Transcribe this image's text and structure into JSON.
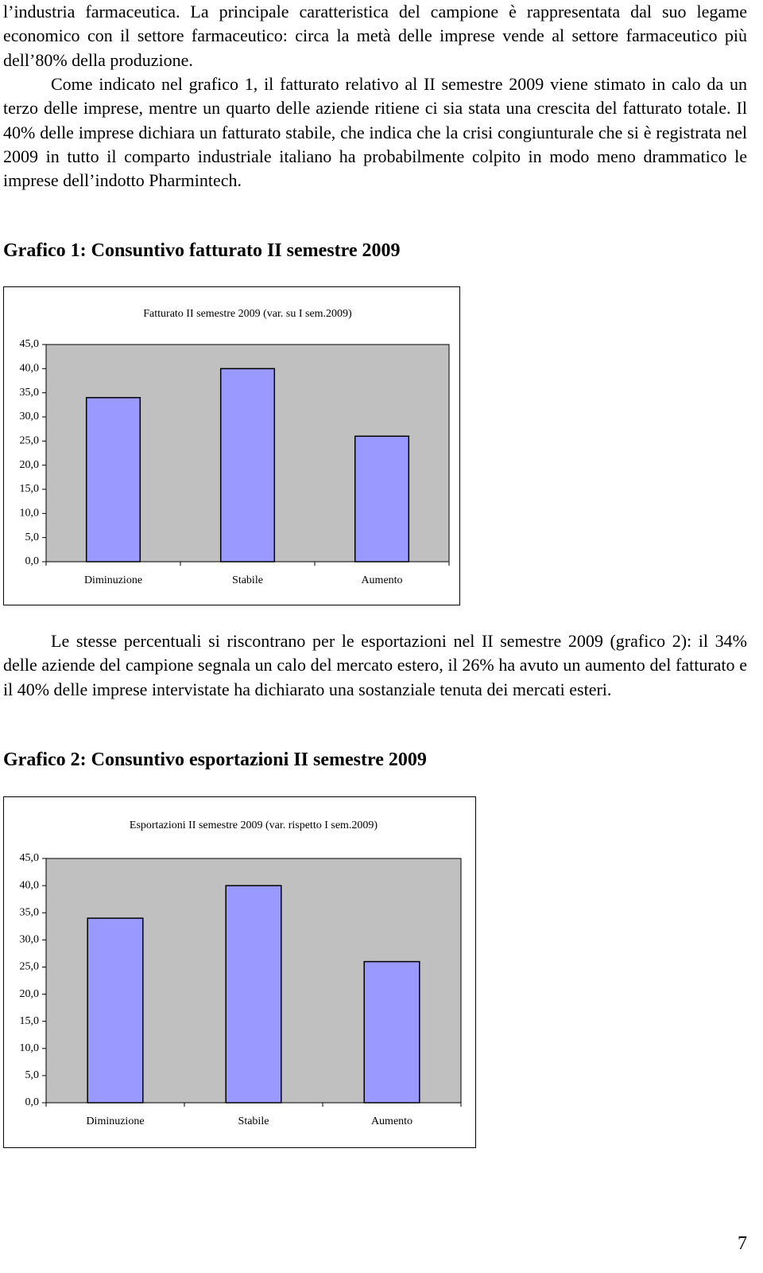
{
  "paragraphs": [
    "l’industria farmaceutica. La principale caratteristica del campione è rappresentata dal suo legame economico con il settore farmaceutico: circa la metà delle imprese vende al settore farmaceutico più dell’80% della produzione.",
    "Come indicato nel grafico 1, il fatturato relativo al II semestre 2009 viene stimato in calo da un terzo delle imprese, mentre un quarto delle aziende ritiene ci sia stata una crescita del fatturato totale. Il 40% delle imprese dichiara un fatturato stabile, che indica che la crisi congiunturale che si è registrata nel 2009 in tutto il comparto industriale italiano ha probabilmente colpito in modo meno drammatico le imprese dell’indotto Pharmintech.",
    "Le stesse percentuali si riscontrano per le esportazioni nel II semestre 2009 (grafico 2): il 34% delle aziende del campione segnala un calo del mercato estero, il 26% ha avuto un aumento del fatturato e il 40% delle imprese intervistate ha dichiarato una sostanziale tenuta dei mercati esteri."
  ],
  "headings": [
    "Grafico 1: Consuntivo fatturato II semestre 2009",
    "Grafico 2: Consuntivo esportazioni II semestre 2009"
  ],
  "page_number": "7",
  "chart_data": [
    {
      "type": "bar",
      "title": "Fatturato II semestre 2009 (var. su I sem.2009)",
      "categories": [
        "Diminuzione",
        "Stabile",
        "Aumento"
      ],
      "values": [
        34,
        40,
        26
      ],
      "color": "#9999ff",
      "plot_background": "#c0c0c0",
      "ylim": [
        0,
        45
      ],
      "yticks": [
        {
          "value": 0,
          "label": "0,0"
        },
        {
          "value": 5,
          "label": "5,0"
        },
        {
          "value": 10,
          "label": "10,0"
        },
        {
          "value": 15,
          "label": "15,0"
        },
        {
          "value": 20,
          "label": "20,0"
        },
        {
          "value": 25,
          "label": "25,0"
        },
        {
          "value": 30,
          "label": "30,0"
        },
        {
          "value": 35,
          "label": "35,0"
        },
        {
          "value": 40,
          "label": "40,0"
        },
        {
          "value": 45,
          "label": "45,0"
        }
      ]
    },
    {
      "type": "bar",
      "title": "Esportazioni II semestre 2009 (var. rispetto I sem.2009)",
      "categories": [
        "Diminuzione",
        "Stabile",
        "Aumento"
      ],
      "values": [
        34,
        40,
        26
      ],
      "color": "#9999ff",
      "plot_background": "#c0c0c0",
      "ylim": [
        0,
        45
      ],
      "yticks": [
        {
          "value": 0,
          "label": "0,0"
        },
        {
          "value": 5,
          "label": "5,0"
        },
        {
          "value": 10,
          "label": "10,0"
        },
        {
          "value": 15,
          "label": "15,0"
        },
        {
          "value": 20,
          "label": "20,0"
        },
        {
          "value": 25,
          "label": "25,0"
        },
        {
          "value": 30,
          "label": "30,0"
        },
        {
          "value": 35,
          "label": "35,0"
        },
        {
          "value": 40,
          "label": "40,0"
        },
        {
          "value": 45,
          "label": "45,0"
        }
      ]
    }
  ]
}
